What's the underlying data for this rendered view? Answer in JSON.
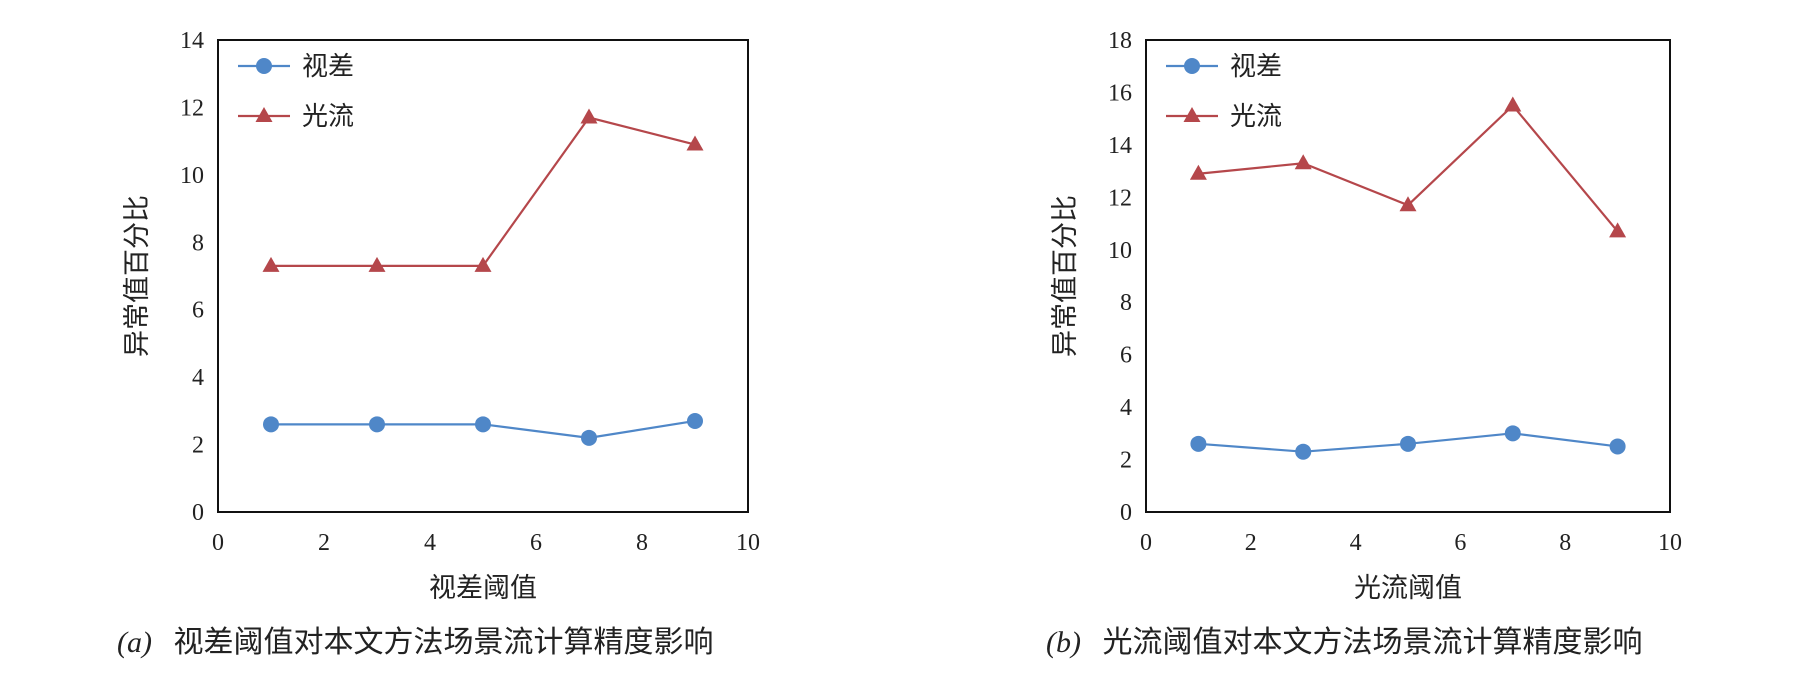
{
  "captions": [
    {
      "tag": "(a)",
      "text": "视差阈值对本文方法场景流计算精度影响"
    },
    {
      "tag": "(b)",
      "text": "光流阈值对本文方法场景流计算精度影响"
    }
  ],
  "colors": {
    "disparity": "#4f87c8",
    "flow": "#b5474b",
    "axis": "#111111"
  },
  "chart_data": [
    {
      "type": "line",
      "xlabel": "视差阈值",
      "ylabel": "异常值百分比",
      "xlim": [
        0,
        10
      ],
      "ylim": [
        0,
        14
      ],
      "xticks": [
        0,
        2,
        4,
        6,
        8,
        10
      ],
      "yticks": [
        0,
        2,
        4,
        6,
        8,
        10,
        12,
        14
      ],
      "x": [
        1,
        3,
        5,
        7,
        9
      ],
      "legend_position": "top-left",
      "series": [
        {
          "name": "视差",
          "marker": "circle",
          "values": [
            2.6,
            2.6,
            2.6,
            2.2,
            2.7
          ]
        },
        {
          "name": "光流",
          "marker": "triangle",
          "values": [
            7.3,
            7.3,
            7.3,
            11.7,
            10.9
          ]
        }
      ]
    },
    {
      "type": "line",
      "xlabel": "光流阈值",
      "ylabel": "异常值百分比",
      "xlim": [
        0,
        10
      ],
      "ylim": [
        0,
        18
      ],
      "xticks": [
        0,
        2,
        4,
        6,
        8,
        10
      ],
      "yticks": [
        0,
        2,
        4,
        6,
        8,
        10,
        12,
        14,
        16,
        18
      ],
      "x": [
        1,
        3,
        5,
        7,
        9
      ],
      "legend_position": "top-left",
      "series": [
        {
          "name": "视差",
          "marker": "circle",
          "values": [
            2.6,
            2.3,
            2.6,
            3.0,
            2.5
          ]
        },
        {
          "name": "光流",
          "marker": "triangle",
          "values": [
            12.9,
            13.3,
            11.7,
            15.5,
            10.7
          ]
        }
      ]
    }
  ]
}
